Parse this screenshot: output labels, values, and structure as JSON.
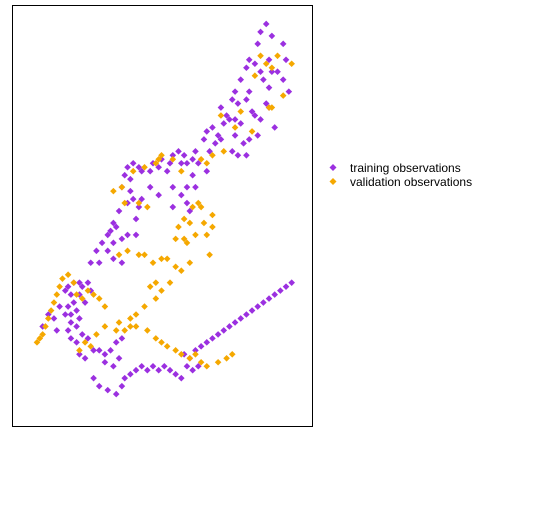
{
  "colors": {
    "training": "#9B30E0",
    "validation": "#F5A800",
    "frame": "#000000",
    "background": "#FFFFFF"
  },
  "chart_data": {
    "type": "scatter",
    "title": "",
    "xlabel": "",
    "ylabel": "",
    "grid": false,
    "axes_labels_visible": false,
    "xlim": [
      0,
      100
    ],
    "ylim": [
      0,
      100
    ],
    "legend_position": "right",
    "series": [
      {
        "name": "training observations",
        "color_key": "training",
        "marker": "diamond",
        "points": [
          [
            85,
            96
          ],
          [
            87,
            98
          ],
          [
            89,
            95
          ],
          [
            93,
            93
          ],
          [
            84,
            93
          ],
          [
            88,
            89
          ],
          [
            94,
            89
          ],
          [
            85,
            86
          ],
          [
            89,
            86
          ],
          [
            91,
            86
          ],
          [
            93,
            84
          ],
          [
            81,
            89
          ],
          [
            83,
            88
          ],
          [
            86,
            84
          ],
          [
            88,
            82
          ],
          [
            80,
            87
          ],
          [
            78,
            84
          ],
          [
            76,
            81
          ],
          [
            81,
            81
          ],
          [
            80,
            79
          ],
          [
            77,
            78
          ],
          [
            82,
            76
          ],
          [
            87,
            78
          ],
          [
            95,
            81
          ],
          [
            83,
            75
          ],
          [
            85,
            74
          ],
          [
            88,
            77
          ],
          [
            90,
            72
          ],
          [
            75,
            79
          ],
          [
            73,
            75
          ],
          [
            71,
            77
          ],
          [
            72,
            73
          ],
          [
            74,
            74
          ],
          [
            76,
            74
          ],
          [
            78,
            73
          ],
          [
            76,
            70
          ],
          [
            68,
            72
          ],
          [
            70,
            70
          ],
          [
            66,
            71
          ],
          [
            69,
            68
          ],
          [
            71,
            69
          ],
          [
            75,
            66
          ],
          [
            77,
            65
          ],
          [
            79,
            68
          ],
          [
            80,
            65
          ],
          [
            84,
            70
          ],
          [
            81,
            69
          ],
          [
            65,
            69
          ],
          [
            67,
            66
          ],
          [
            62,
            66
          ],
          [
            63,
            63
          ],
          [
            66,
            61
          ],
          [
            58,
            65
          ],
          [
            56,
            66
          ],
          [
            54,
            65
          ],
          [
            57,
            63
          ],
          [
            59,
            63
          ],
          [
            61,
            64
          ],
          [
            53,
            63
          ],
          [
            50,
            64
          ],
          [
            52,
            61
          ],
          [
            49,
            62
          ],
          [
            47,
            63
          ],
          [
            46,
            61
          ],
          [
            43,
            61
          ],
          [
            42,
            62
          ],
          [
            40,
            63
          ],
          [
            39,
            59
          ],
          [
            38,
            62
          ],
          [
            37,
            60
          ],
          [
            39,
            56
          ],
          [
            36,
            57
          ],
          [
            40,
            54
          ],
          [
            42,
            52
          ],
          [
            41,
            49
          ],
          [
            59,
            57
          ],
          [
            61,
            60
          ],
          [
            62,
            57
          ],
          [
            59,
            53
          ],
          [
            60,
            51
          ],
          [
            54,
            57
          ],
          [
            57,
            55
          ],
          [
            54,
            52
          ],
          [
            49,
            55
          ],
          [
            46,
            57
          ],
          [
            43,
            54
          ],
          [
            38,
            53
          ],
          [
            35,
            51
          ],
          [
            33,
            48
          ],
          [
            32,
            46
          ],
          [
            34,
            47
          ],
          [
            36,
            44
          ],
          [
            33,
            43
          ],
          [
            31,
            45
          ],
          [
            29,
            43
          ],
          [
            27,
            41
          ],
          [
            38,
            45
          ],
          [
            41,
            45
          ],
          [
            36,
            38
          ],
          [
            33,
            39
          ],
          [
            31,
            41
          ],
          [
            28,
            38
          ],
          [
            25,
            38
          ],
          [
            24,
            33
          ],
          [
            25,
            31
          ],
          [
            22,
            32
          ],
          [
            21,
            33
          ],
          [
            19,
            33
          ],
          [
            17,
            32
          ],
          [
            16,
            31
          ],
          [
            18,
            30
          ],
          [
            21,
            30
          ],
          [
            23,
            28
          ],
          [
            19,
            28
          ],
          [
            17,
            27
          ],
          [
            16,
            25
          ],
          [
            20,
            26
          ],
          [
            18,
            25
          ],
          [
            21,
            24
          ],
          [
            18,
            23
          ],
          [
            20,
            22
          ],
          [
            17,
            21
          ],
          [
            14,
            27
          ],
          [
            12,
            24
          ],
          [
            10,
            25
          ],
          [
            8,
            22
          ],
          [
            13,
            21
          ],
          [
            18,
            19
          ],
          [
            20,
            18
          ],
          [
            22,
            20
          ],
          [
            24,
            19
          ],
          [
            26,
            16
          ],
          [
            23,
            14
          ],
          [
            21,
            15
          ],
          [
            28,
            16
          ],
          [
            30,
            15
          ],
          [
            32,
            16
          ],
          [
            34,
            18
          ],
          [
            36,
            19
          ],
          [
            30,
            13
          ],
          [
            33,
            12
          ],
          [
            35,
            14
          ],
          [
            26,
            9
          ],
          [
            28,
            7
          ],
          [
            31,
            6
          ],
          [
            34,
            5
          ],
          [
            36,
            7
          ],
          [
            37,
            9
          ],
          [
            39,
            10
          ],
          [
            41,
            11
          ],
          [
            43,
            12
          ],
          [
            45,
            11
          ],
          [
            47,
            12
          ],
          [
            49,
            11
          ],
          [
            51,
            12
          ],
          [
            53,
            11
          ],
          [
            55,
            10
          ],
          [
            57,
            9
          ],
          [
            59,
            12
          ],
          [
            61,
            11
          ],
          [
            63,
            12
          ],
          [
            58,
            15
          ],
          [
            60,
            14
          ],
          [
            62,
            16
          ],
          [
            64,
            17
          ],
          [
            66,
            18
          ],
          [
            68,
            19
          ],
          [
            70,
            20
          ],
          [
            72,
            21
          ],
          [
            74,
            22
          ],
          [
            76,
            23
          ],
          [
            78,
            24
          ],
          [
            80,
            25
          ],
          [
            82,
            26
          ],
          [
            84,
            27
          ],
          [
            86,
            28
          ],
          [
            88,
            29
          ],
          [
            90,
            30
          ],
          [
            92,
            31
          ],
          [
            94,
            32
          ],
          [
            96,
            33
          ]
        ]
      },
      {
        "name": "validation observations",
        "color_key": "validation",
        "marker": "diamond",
        "points": [
          [
            96,
            88
          ],
          [
            91,
            90
          ],
          [
            85,
            90
          ],
          [
            87,
            88
          ],
          [
            89,
            87
          ],
          [
            83,
            85
          ],
          [
            93,
            80
          ],
          [
            88,
            77
          ],
          [
            89,
            77
          ],
          [
            78,
            76
          ],
          [
            71,
            75
          ],
          [
            76,
            72
          ],
          [
            82,
            71
          ],
          [
            72,
            66
          ],
          [
            68,
            65
          ],
          [
            64,
            64
          ],
          [
            66,
            63
          ],
          [
            57,
            61
          ],
          [
            54,
            64
          ],
          [
            50,
            65
          ],
          [
            49,
            64
          ],
          [
            48,
            63
          ],
          [
            44,
            62
          ],
          [
            40,
            61
          ],
          [
            36,
            57
          ],
          [
            33,
            56
          ],
          [
            37,
            53
          ],
          [
            42,
            53
          ],
          [
            45,
            52
          ],
          [
            60,
            48
          ],
          [
            63,
            53
          ],
          [
            64,
            52
          ],
          [
            61,
            52
          ],
          [
            58,
            49
          ],
          [
            56,
            47
          ],
          [
            65,
            48
          ],
          [
            68,
            50
          ],
          [
            68,
            47
          ],
          [
            66,
            45
          ],
          [
            62,
            45
          ],
          [
            58,
            44
          ],
          [
            55,
            44
          ],
          [
            59,
            43
          ],
          [
            67,
            40
          ],
          [
            60,
            38
          ],
          [
            57,
            36
          ],
          [
            52,
            39
          ],
          [
            50,
            39
          ],
          [
            44,
            40
          ],
          [
            42,
            40
          ],
          [
            38,
            41
          ],
          [
            35,
            40
          ],
          [
            47,
            38
          ],
          [
            48,
            33
          ],
          [
            46,
            32
          ],
          [
            55,
            37
          ],
          [
            53,
            33
          ],
          [
            50,
            31
          ],
          [
            48,
            29
          ],
          [
            44,
            27
          ],
          [
            41,
            25
          ],
          [
            39,
            22
          ],
          [
            37,
            21
          ],
          [
            35,
            23
          ],
          [
            30,
            27
          ],
          [
            28,
            29
          ],
          [
            26,
            30
          ],
          [
            24,
            31
          ],
          [
            22,
            29
          ],
          [
            20,
            30
          ],
          [
            19,
            33
          ],
          [
            17,
            35
          ],
          [
            15,
            34
          ],
          [
            14,
            32
          ],
          [
            13,
            30
          ],
          [
            12,
            28
          ],
          [
            11,
            26
          ],
          [
            10,
            24
          ],
          [
            9,
            22
          ],
          [
            8,
            20
          ],
          [
            7,
            19
          ],
          [
            6,
            18
          ],
          [
            30,
            22
          ],
          [
            27,
            20
          ],
          [
            25,
            17
          ],
          [
            23,
            18
          ],
          [
            21,
            16
          ],
          [
            34,
            21
          ],
          [
            39,
            24
          ],
          [
            41,
            22
          ],
          [
            45,
            21
          ],
          [
            48,
            19
          ],
          [
            50,
            18
          ],
          [
            52,
            17
          ],
          [
            55,
            16
          ],
          [
            57,
            15
          ],
          [
            60,
            14
          ],
          [
            62,
            15
          ],
          [
            64,
            13
          ],
          [
            66,
            12
          ],
          [
            70,
            13
          ],
          [
            73,
            14
          ],
          [
            75,
            15
          ]
        ]
      }
    ]
  },
  "legend": {
    "items": [
      {
        "label": "training observations",
        "color_key": "training"
      },
      {
        "label": "validation observations",
        "color_key": "validation"
      }
    ]
  }
}
